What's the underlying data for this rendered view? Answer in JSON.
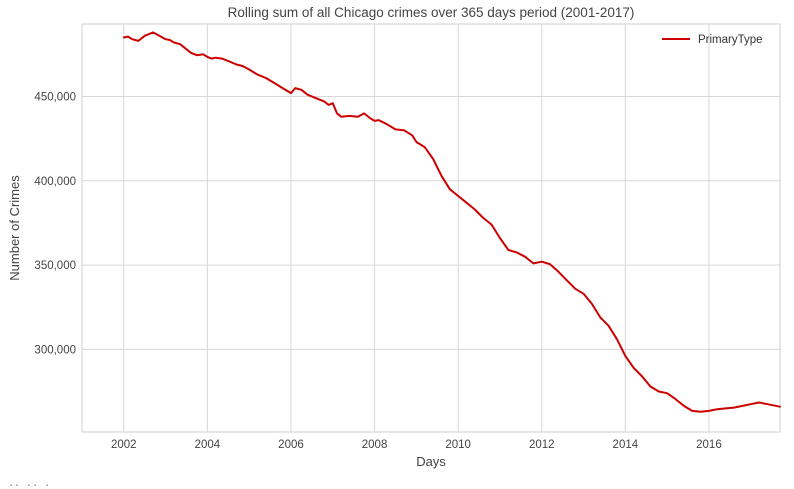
{
  "chart_data": {
    "type": "line",
    "title": "Rolling sum of all Chicago crimes over 365 days period (2001-2017)",
    "xlabel": "Days",
    "ylabel": "Number of Crimes",
    "xlim": [
      2001.0,
      2017.7
    ],
    "ylim": [
      251000,
      493000
    ],
    "xticks": [
      2002,
      2004,
      2006,
      2008,
      2010,
      2012,
      2014,
      2016
    ],
    "xtick_labels": [
      "2002",
      "2004",
      "2006",
      "2008",
      "2010",
      "2012",
      "2014",
      "2016"
    ],
    "yticks": [
      300000,
      350000,
      400000,
      450000
    ],
    "ytick_labels": [
      "300,000",
      "350,000",
      "400,000",
      "450,000"
    ],
    "grid": true,
    "legend": {
      "position": "top-right",
      "entries": [
        "PrimaryType"
      ]
    },
    "series": [
      {
        "name": "PrimaryType",
        "color": "#cc0000",
        "x": [
          2002.0,
          2002.1,
          2002.2,
          2002.35,
          2002.5,
          2002.6,
          2002.7,
          2002.85,
          2003.0,
          2003.1,
          2003.2,
          2003.35,
          2003.5,
          2003.6,
          2003.75,
          2003.9,
          2004.0,
          2004.1,
          2004.2,
          2004.35,
          2004.5,
          2004.7,
          2004.85,
          2005.0,
          2005.2,
          2005.4,
          2005.6,
          2005.8,
          2006.0,
          2006.1,
          2006.25,
          2006.4,
          2006.6,
          2006.8,
          2006.9,
          2007.0,
          2007.1,
          2007.2,
          2007.4,
          2007.6,
          2007.75,
          2007.9,
          2008.0,
          2008.1,
          2008.3,
          2008.5,
          2008.7,
          2008.9,
          2009.0,
          2009.2,
          2009.4,
          2009.6,
          2009.8,
          2010.0,
          2010.2,
          2010.4,
          2010.6,
          2010.8,
          2011.0,
          2011.2,
          2011.4,
          2011.6,
          2011.8,
          2012.0,
          2012.2,
          2012.4,
          2012.6,
          2012.8,
          2013.0,
          2013.2,
          2013.4,
          2013.6,
          2013.8,
          2014.0,
          2014.2,
          2014.4,
          2014.6,
          2014.8,
          2015.0,
          2015.2,
          2015.4,
          2015.6,
          2015.8,
          2016.0,
          2016.2,
          2016.4,
          2016.6,
          2016.8,
          2017.0,
          2017.2,
          2017.4,
          2017.7
        ],
        "y": [
          485000,
          485500,
          484000,
          483000,
          486000,
          487000,
          488000,
          486000,
          484000,
          483500,
          482000,
          481000,
          478000,
          476000,
          474500,
          475000,
          473500,
          472500,
          473000,
          472500,
          471000,
          469000,
          468000,
          466000,
          463000,
          461000,
          458000,
          455000,
          452000,
          455000,
          454000,
          451000,
          449000,
          447000,
          445000,
          446000,
          440000,
          438000,
          438500,
          438000,
          440000,
          437000,
          435500,
          436000,
          433500,
          430500,
          430000,
          427000,
          423000,
          420000,
          413000,
          403000,
          395000,
          391000,
          387000,
          383000,
          378000,
          374000,
          366000,
          359000,
          357500,
          355000,
          351000,
          352000,
          350500,
          346000,
          341000,
          336000,
          333000,
          327000,
          319000,
          314000,
          306000,
          296000,
          289000,
          284000,
          278000,
          275000,
          274000,
          270500,
          266500,
          263500,
          263000,
          263500,
          264500,
          265000,
          265500,
          266500,
          267500,
          268500,
          267500,
          266000
        ]
      }
    ]
  },
  "footer": {
    "snippet": ".. ..  ."
  }
}
